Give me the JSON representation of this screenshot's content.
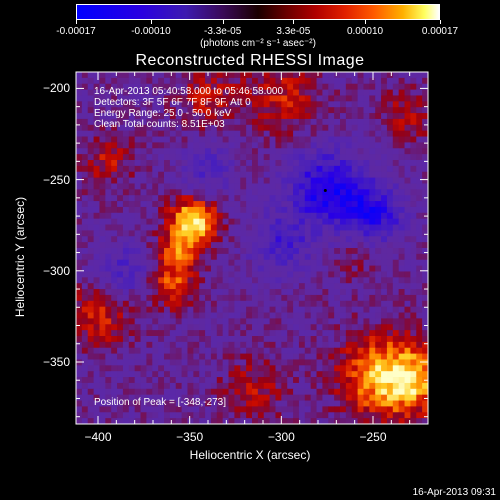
{
  "colorbar": {
    "tick_labels": [
      "-0.00017",
      "-0.00010",
      "-3.3e-05",
      "3.3e-05",
      "0.00010",
      "0.00017"
    ],
    "unit_label": "(photons cm⁻² s⁻¹ asec⁻²)"
  },
  "chart_data": {
    "type": "heatmap",
    "title": "Reconstructed RHESSI Image",
    "xlabel": "Heliocentric X (arcsec)",
    "ylabel": "Heliocentric Y (arcsec)",
    "xlim": [
      -412,
      -220
    ],
    "ylim": [
      -384,
      -191
    ],
    "x_ticks": [
      -400,
      -350,
      -300,
      -250
    ],
    "y_ticks": [
      -200,
      -250,
      -300,
      -350
    ],
    "colorscale_range": [
      -0.00017,
      0.00017
    ],
    "peak": {
      "x": -348,
      "y": -273
    },
    "hotspots": [
      {
        "x": -348,
        "y": -273,
        "amplitude": 1.0,
        "width": 9
      },
      {
        "x": -357,
        "y": -290,
        "amplitude": 0.55,
        "width": 8
      },
      {
        "x": -360,
        "y": -308,
        "amplitude": 0.5,
        "width": 9
      },
      {
        "x": -245,
        "y": -358,
        "amplitude": 0.8,
        "width": 16
      },
      {
        "x": -225,
        "y": -360,
        "amplitude": 0.55,
        "width": 12
      },
      {
        "x": -400,
        "y": -325,
        "amplitude": 0.45,
        "width": 12
      },
      {
        "x": -395,
        "y": -240,
        "amplitude": 0.35,
        "width": 10
      },
      {
        "x": -300,
        "y": -205,
        "amplitude": 0.4,
        "width": 14
      },
      {
        "x": -340,
        "y": -205,
        "amplitude": 0.35,
        "width": 12
      },
      {
        "x": -315,
        "y": -365,
        "amplitude": 0.35,
        "width": 12
      },
      {
        "x": -232,
        "y": -215,
        "amplitude": 0.35,
        "width": 10
      },
      {
        "x": -255,
        "y": -290,
        "amplitude": 0.25,
        "width": 10
      }
    ],
    "coldspots": [
      {
        "x": -275,
        "y": -255,
        "amplitude": -0.8,
        "width": 14
      },
      {
        "x": -250,
        "y": -270,
        "amplitude": -0.7,
        "width": 12
      },
      {
        "x": -300,
        "y": -285,
        "amplitude": -0.45,
        "width": 12
      },
      {
        "x": -385,
        "y": -300,
        "amplitude": -0.4,
        "width": 10
      },
      {
        "x": -340,
        "y": -245,
        "amplitude": -0.35,
        "width": 10
      }
    ]
  },
  "info": {
    "time": "16-Apr-2013 05:40:58.000 to 05:46:58.000",
    "detectors": "Detectors: 3F 5F 6F 7F 8F 9F, Att 0",
    "energy": "Energy Range: 25.0 - 50.0 keV",
    "clean": "Clean     Total counts: 8.51E+03",
    "peak_position": "Position of Peak = [-348,-273]"
  },
  "footer": {
    "timestamp": "16-Apr-2013 09:31"
  }
}
